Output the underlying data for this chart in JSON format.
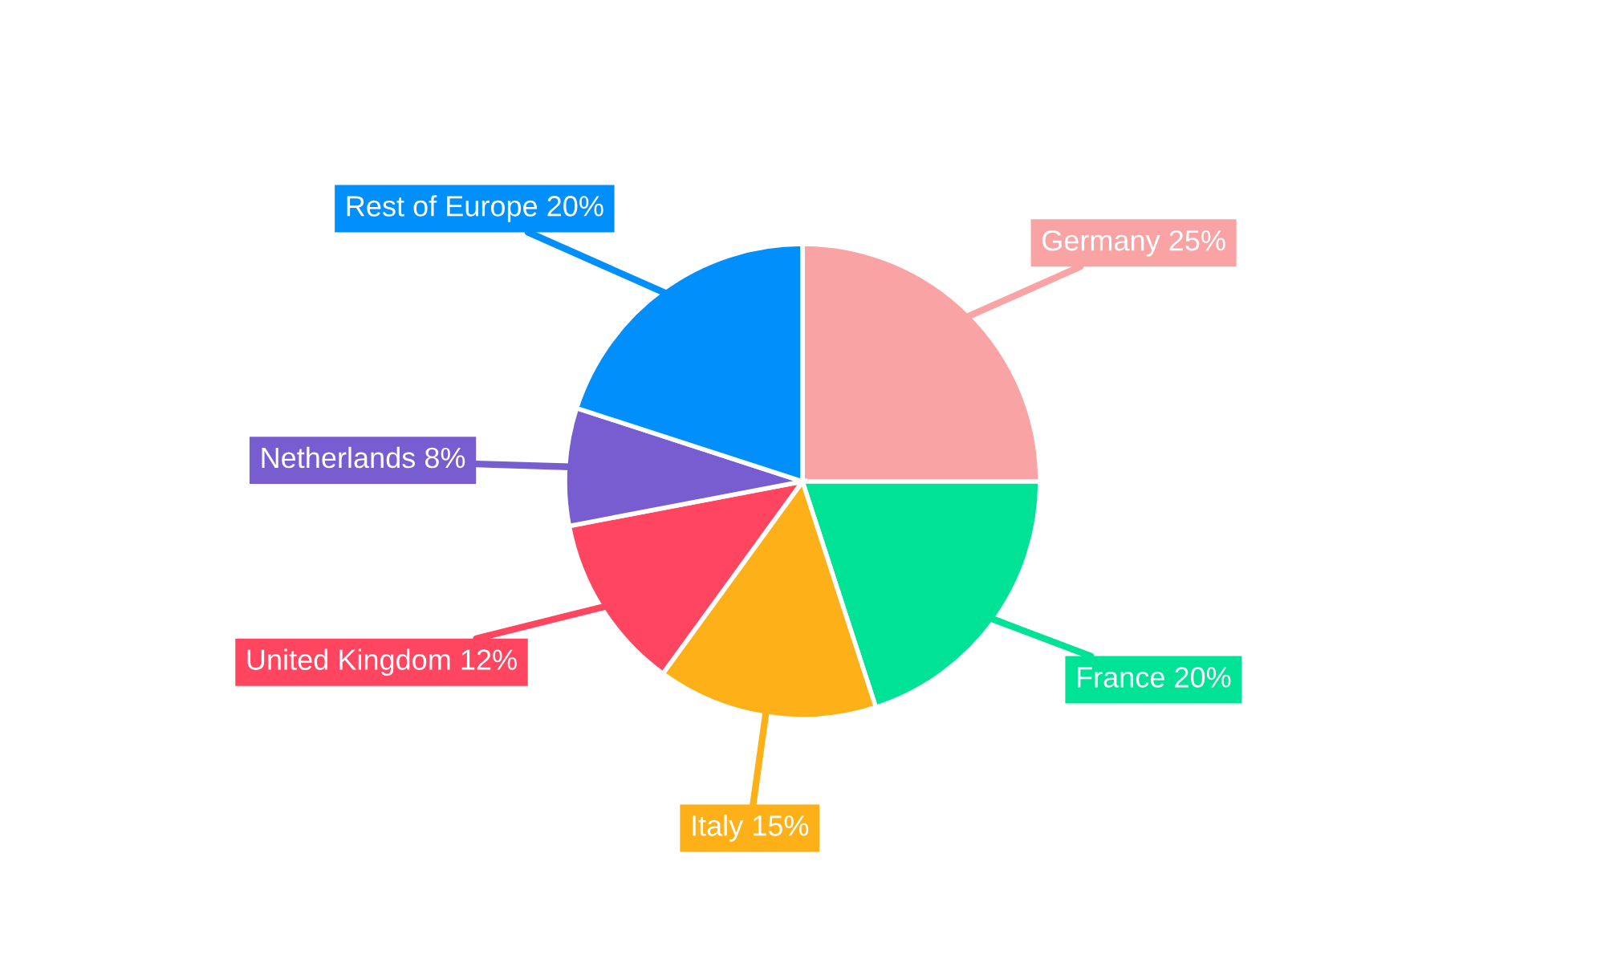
{
  "chart_data": {
    "type": "pie",
    "categories": [
      "Germany",
      "France",
      "Italy",
      "United Kingdom",
      "Netherlands",
      "Rest of Europe"
    ],
    "values": [
      25,
      20,
      15,
      12,
      8,
      20
    ],
    "value_labels": [
      "25%",
      "20%",
      "15%",
      "12%",
      "8%",
      "20%"
    ],
    "colors": [
      "#f9a3a4",
      "#00e396",
      "#feb019",
      "#ff4560",
      "#775dd0",
      "#008ffb"
    ],
    "legend": false
  }
}
